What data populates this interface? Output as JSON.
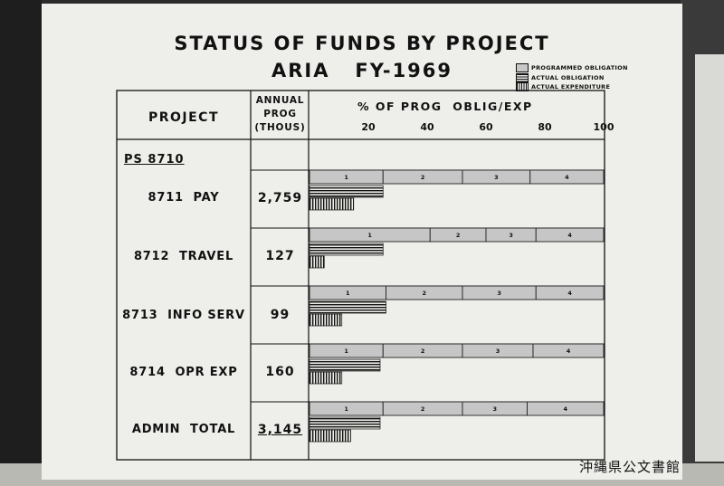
{
  "chart_data": {
    "type": "bar",
    "title": "STATUS OF FUNDS BY PROJECT",
    "subtitle": "ARIA   FY-1969",
    "xlabel": "% OF PROG  OBLIG/EXP",
    "xlim": [
      0,
      100
    ],
    "x_ticks": [
      "20",
      "40",
      "60",
      "80",
      "100"
    ],
    "x_tick_values": [
      20,
      40,
      60,
      80,
      100
    ],
    "legend": [
      "PROGRAMMED OBLIGATION",
      "ACTUAL OBLIGATION",
      "ACTUAL EXPENDITURE"
    ],
    "legend_position": "top-right",
    "columns": {
      "project": "PROJECT",
      "annual": [
        "ANNUAL",
        "PROG",
        "(THOUS)"
      ]
    },
    "group_label": "PS 8710",
    "categories": [
      "8711  PAY",
      "8712  TRAVEL",
      "8713  INFO SERV",
      "8714  OPR EXP",
      "ADMIN  TOTAL"
    ],
    "annual_prog": [
      "2,759",
      "127",
      "99",
      "160",
      "3,145"
    ],
    "quarter_labels": [
      "1",
      "2",
      "3",
      "4"
    ],
    "programmed_quarter_bounds": [
      [
        0,
        25,
        52,
        75,
        100
      ],
      [
        0,
        41,
        60,
        77,
        100
      ],
      [
        0,
        26,
        52,
        77,
        100
      ],
      [
        0,
        25,
        52,
        76,
        100
      ],
      [
        0,
        25,
        52,
        74,
        100
      ]
    ],
    "series": [
      {
        "name": "ACTUAL OBLIGATION",
        "values": [
          25,
          25,
          26,
          24,
          24
        ]
      },
      {
        "name": "ACTUAL EXPENDITURE",
        "values": [
          15,
          5,
          11,
          11,
          14
        ]
      }
    ]
  },
  "watermark": "沖縄県公文書館"
}
